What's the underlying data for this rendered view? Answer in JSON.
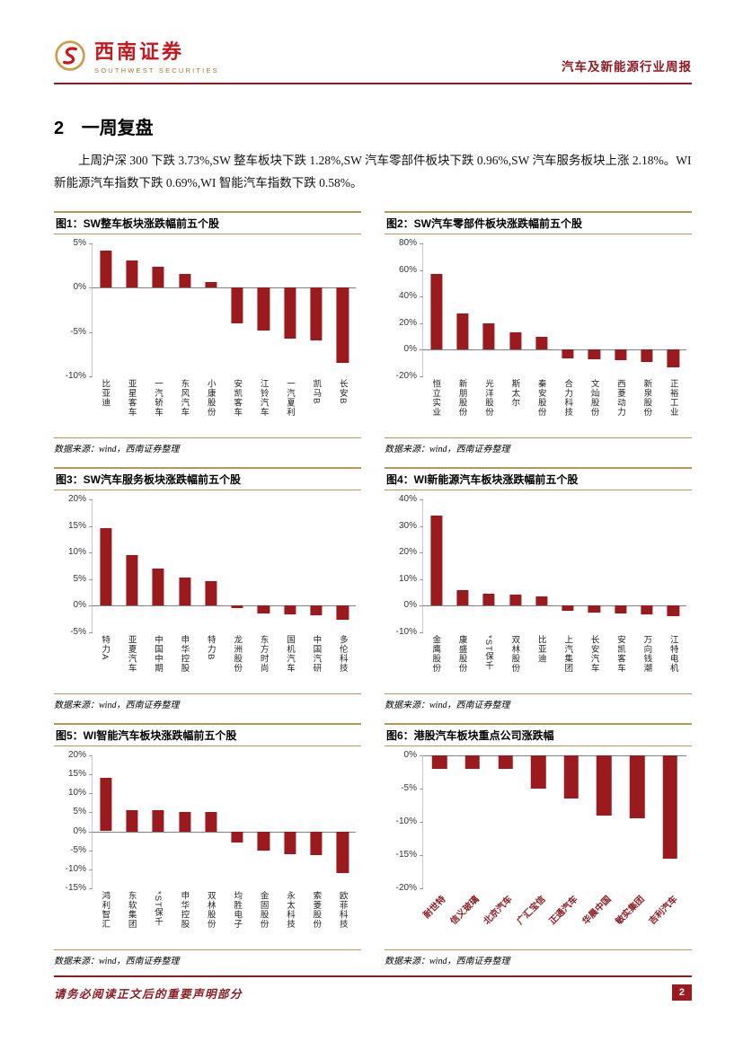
{
  "header": {
    "brand_cn": "西南证券",
    "brand_en": "SOUTHWEST SECURITIES",
    "report_type": "汽车及新能源行业周报"
  },
  "section": {
    "number": "2",
    "title": "一周复盘",
    "paragraph": "上周沪深 300 下跌 3.73%,SW 整车板块下跌 1.28%,SW 汽车零部件板块下跌 0.96%,SW 汽车服务板块上涨 2.18%。WI 新能源汽车指数下跌 0.69%,WI 智能汽车指数下跌 0.58%。"
  },
  "source_note": "数据来源：wind，西南证券整理",
  "footer": {
    "disclaimer": "请务必阅读正文后的重要声明部分",
    "page_number": "2"
  },
  "colors": {
    "bar": "#9B1A1D",
    "accent": "#8C1C22",
    "gold": "#B49759",
    "brand_red": "#C9151E"
  },
  "chart_data": [
    {
      "type": "bar",
      "title": "图1：SW整车板块涨跌幅前五个股",
      "categories": [
        "比亚迪",
        "亚星客车",
        "一汽轿车",
        "东风汽车",
        "小康股份",
        "安凯客车",
        "江铃汽车",
        "一汽夏利",
        "凯马B",
        "长安B"
      ],
      "values": [
        4.2,
        3.1,
        2.4,
        1.5,
        0.6,
        -4.0,
        -4.8,
        -5.7,
        -6.0,
        -8.5
      ],
      "yticks": [
        5,
        0,
        -5,
        -10
      ],
      "ylim": [
        -10,
        5
      ],
      "label_style": "vertical"
    },
    {
      "type": "bar",
      "title": "图2：SW汽车零部件板块涨跌幅前五个股",
      "categories": [
        "恒立实业",
        "新朋股份",
        "光洋股份",
        "斯太尔",
        "秦安股份",
        "合力科技",
        "文灿股份",
        "西菱动力",
        "新泉股份",
        "正裕工业"
      ],
      "values": [
        57,
        27,
        20,
        13,
        10,
        -6.5,
        -7.5,
        -8,
        -9,
        -13
      ],
      "yticks": [
        80,
        60,
        40,
        20,
        0,
        -20
      ],
      "ylim": [
        -20,
        80
      ],
      "label_style": "vertical"
    },
    {
      "type": "bar",
      "title": "图3：SW汽车服务板块涨跌幅前五个股",
      "categories": [
        "特力A",
        "亚夏汽车",
        "中国中期",
        "申华控股",
        "特力B",
        "龙洲股份",
        "东方时尚",
        "国机汽车",
        "中国汽研",
        "多伦科技"
      ],
      "values": [
        14.5,
        9.5,
        7.0,
        5.3,
        4.7,
        -0.5,
        -1.4,
        -1.7,
        -1.8,
        -2.6
      ],
      "yticks": [
        20,
        15,
        10,
        5,
        0,
        -5
      ],
      "ylim": [
        -5,
        20
      ],
      "label_style": "vertical"
    },
    {
      "type": "bar",
      "title": "图4：WI新能源汽车板块涨跌幅前五个股",
      "categories": [
        "金鹰股份",
        "康盛股份",
        "*ST保千",
        "双林股份",
        "比亚迪",
        "上汽集团",
        "长安汽车",
        "安凯客车",
        "万向钱潮",
        "江特电机"
      ],
      "values": [
        34,
        6,
        4.5,
        4,
        3.5,
        -2,
        -2.5,
        -3,
        -3.2,
        -4
      ],
      "yticks": [
        40,
        30,
        20,
        10,
        0,
        -10
      ],
      "ylim": [
        -10,
        40
      ],
      "label_style": "vertical"
    },
    {
      "type": "bar",
      "title": "图5：WI智能汽车板块涨跌幅前五个股",
      "categories": [
        "鸿利智汇",
        "东软集团",
        "*ST保千",
        "申华控股",
        "双林股份",
        "均胜电子",
        "金固股份",
        "永太科技",
        "索菱股份",
        "欧菲科技"
      ],
      "values": [
        14,
        5.5,
        5.5,
        5.2,
        5,
        -3,
        -5,
        -6,
        -6.2,
        -11
      ],
      "yticks": [
        20,
        15,
        10,
        5,
        0,
        -5,
        -10,
        -15
      ],
      "ylim": [
        -15,
        20
      ],
      "label_style": "vertical"
    },
    {
      "type": "bar",
      "title": "图6：港股汽车板块重点公司涨跌幅",
      "categories": [
        "耐世特",
        "信义玻璃",
        "北京汽车",
        "广汇宝信",
        "正通汽车",
        "华晨中国",
        "敏实集团",
        "吉利汽车"
      ],
      "values": [
        -2,
        -2,
        -2,
        -5,
        -6.5,
        -9,
        -9.5,
        -15.5
      ],
      "yticks": [
        0,
        -5,
        -10,
        -15,
        -20
      ],
      "ylim": [
        -20,
        0
      ],
      "label_style": "rotated"
    }
  ]
}
